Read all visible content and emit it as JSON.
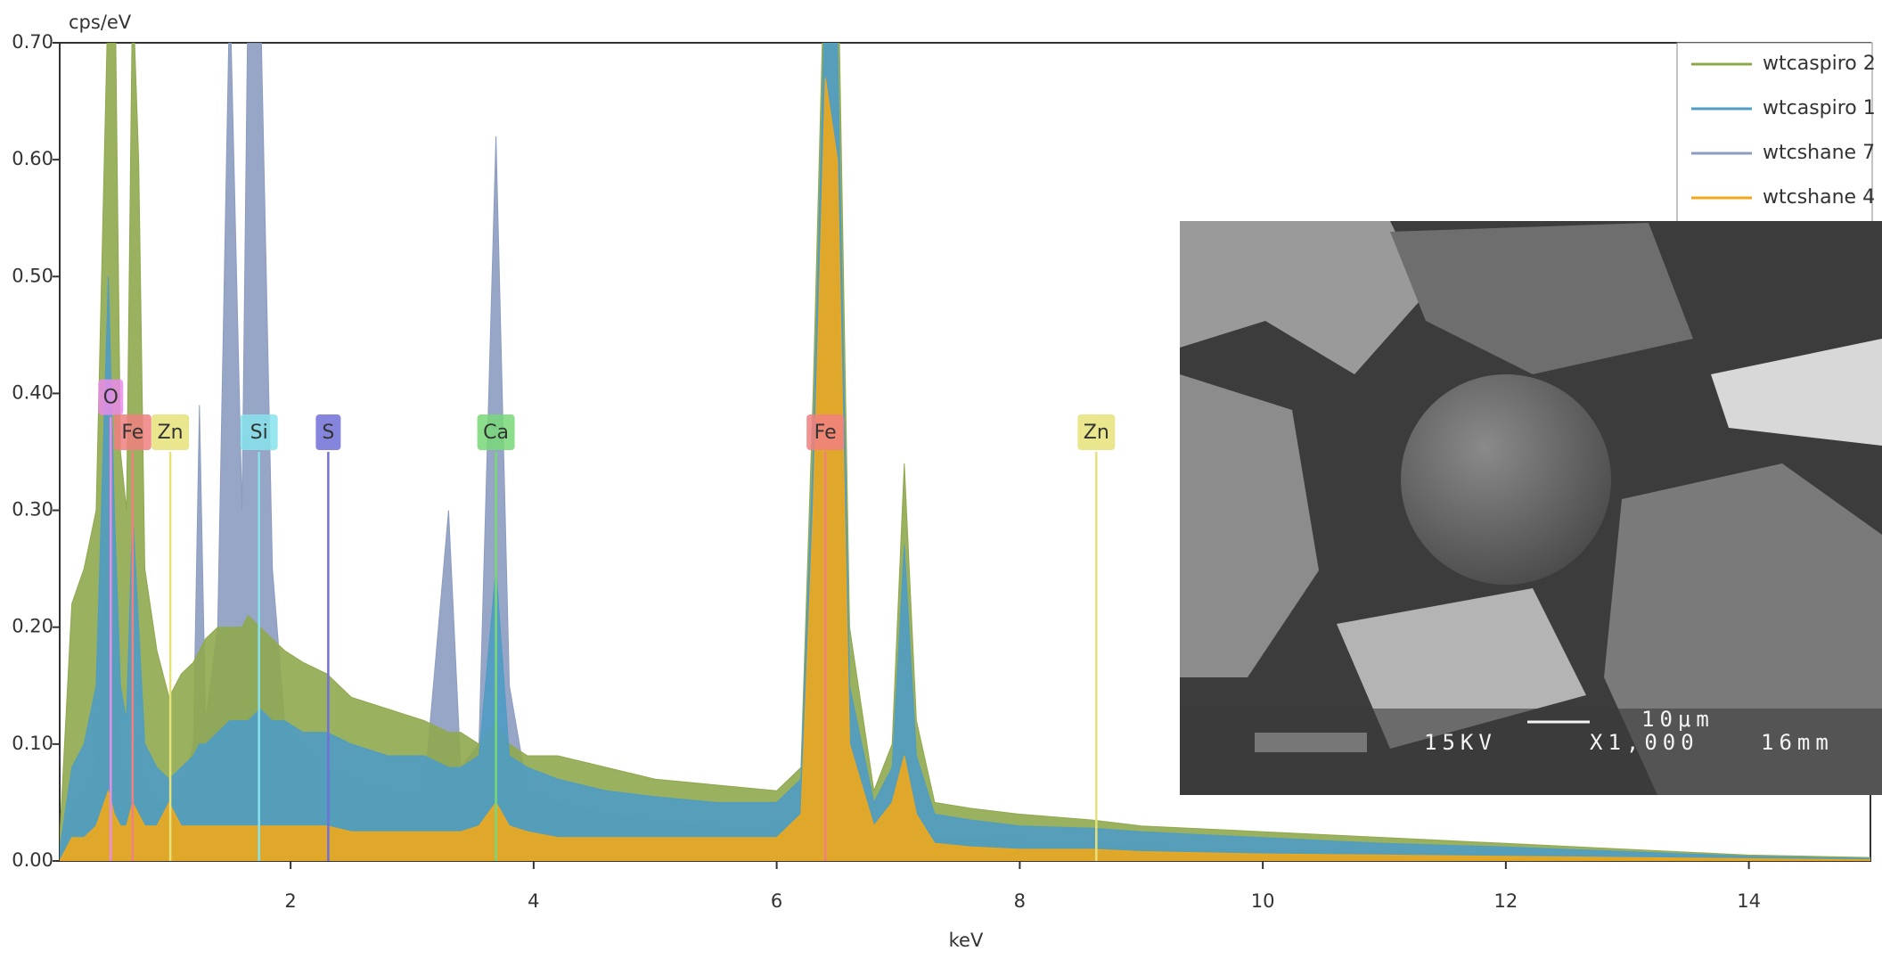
{
  "chart_data": {
    "type": "area",
    "y_label": "cps/eV",
    "x_label": "keV",
    "x": [
      0.1,
      0.2,
      0.3,
      0.4,
      0.5,
      0.55,
      0.6,
      0.65,
      0.7,
      0.75,
      0.8,
      0.9,
      1.0,
      1.1,
      1.2,
      1.25,
      1.3,
      1.4,
      1.5,
      1.6,
      1.65,
      1.75,
      1.85,
      1.95,
      2.1,
      2.3,
      2.5,
      2.8,
      3.1,
      3.3,
      3.4,
      3.55,
      3.69,
      3.8,
      3.95,
      4.2,
      4.6,
      5.0,
      5.5,
      6.0,
      6.2,
      6.3,
      6.4,
      6.5,
      6.6,
      6.8,
      6.95,
      7.05,
      7.15,
      7.3,
      7.6,
      8.0,
      8.6,
      9.0,
      10,
      11,
      12,
      13,
      14,
      15
    ],
    "series": [
      {
        "name": "wtcaspiro 2",
        "color": "#8fa84e",
        "values": [
          0.02,
          0.22,
          0.25,
          0.3,
          0.75,
          0.8,
          0.35,
          0.3,
          0.75,
          0.6,
          0.25,
          0.18,
          0.14,
          0.16,
          0.17,
          0.18,
          0.19,
          0.2,
          0.2,
          0.2,
          0.21,
          0.2,
          0.19,
          0.18,
          0.17,
          0.16,
          0.14,
          0.13,
          0.12,
          0.11,
          0.11,
          0.1,
          0.12,
          0.1,
          0.09,
          0.09,
          0.08,
          0.07,
          0.065,
          0.06,
          0.08,
          0.4,
          0.8,
          0.8,
          0.2,
          0.06,
          0.1,
          0.34,
          0.12,
          0.05,
          0.045,
          0.04,
          0.035,
          0.03,
          0.025,
          0.02,
          0.015,
          0.01,
          0.005,
          0.003
        ]
      },
      {
        "name": "wtcaspiro 1",
        "color": "#4f9cc4",
        "values": [
          0.01,
          0.08,
          0.1,
          0.15,
          0.5,
          0.3,
          0.15,
          0.12,
          0.3,
          0.2,
          0.1,
          0.08,
          0.07,
          0.08,
          0.09,
          0.1,
          0.1,
          0.11,
          0.12,
          0.12,
          0.12,
          0.13,
          0.12,
          0.12,
          0.11,
          0.11,
          0.1,
          0.09,
          0.09,
          0.08,
          0.08,
          0.09,
          0.25,
          0.09,
          0.08,
          0.07,
          0.06,
          0.055,
          0.05,
          0.05,
          0.07,
          0.35,
          0.75,
          0.7,
          0.15,
          0.05,
          0.08,
          0.27,
          0.09,
          0.04,
          0.035,
          0.03,
          0.028,
          0.025,
          0.02,
          0.015,
          0.012,
          0.008,
          0.004,
          0.002
        ]
      },
      {
        "name": "wtcshane 7",
        "color": "#8c9cc0",
        "values": [
          0.005,
          0.05,
          0.06,
          0.08,
          0.3,
          0.15,
          0.08,
          0.06,
          0.12,
          0.1,
          0.06,
          0.05,
          0.05,
          0.06,
          0.1,
          0.39,
          0.12,
          0.2,
          0.75,
          0.3,
          0.75,
          0.75,
          0.25,
          0.12,
          0.1,
          0.08,
          0.07,
          0.06,
          0.06,
          0.3,
          0.08,
          0.1,
          0.62,
          0.15,
          0.06,
          0.05,
          0.04,
          0.035,
          0.03,
          0.03,
          0.04,
          0.15,
          0.3,
          0.28,
          0.08,
          0.03,
          0.04,
          0.1,
          0.04,
          0.02,
          0.02,
          0.018,
          0.015,
          0.012,
          0.01,
          0.008,
          0.006,
          0.004,
          0.002,
          0.001
        ]
      },
      {
        "name": "wtcshane 4",
        "color": "#f0a81c",
        "values": [
          0,
          0.02,
          0.02,
          0.03,
          0.06,
          0.04,
          0.03,
          0.03,
          0.05,
          0.04,
          0.03,
          0.03,
          0.05,
          0.03,
          0.03,
          0.03,
          0.03,
          0.03,
          0.03,
          0.03,
          0.03,
          0.03,
          0.03,
          0.03,
          0.03,
          0.03,
          0.025,
          0.025,
          0.025,
          0.025,
          0.025,
          0.03,
          0.05,
          0.03,
          0.025,
          0.02,
          0.02,
          0.02,
          0.02,
          0.02,
          0.04,
          0.3,
          0.67,
          0.6,
          0.1,
          0.03,
          0.05,
          0.09,
          0.04,
          0.015,
          0.012,
          0.01,
          0.01,
          0.008,
          0.006,
          0.005,
          0.004,
          0.003,
          0.002,
          0.001
        ]
      }
    ],
    "markers": [
      {
        "label": "O",
        "x": 0.52,
        "y": 0.38,
        "color": "#e98ce9"
      },
      {
        "label": "Fe",
        "x": 0.7,
        "y": 0.35,
        "color": "#f08080"
      },
      {
        "label": "Zn",
        "x": 1.01,
        "y": 0.35,
        "color": "#e6e27a"
      },
      {
        "label": "Si",
        "x": 1.74,
        "y": 0.35,
        "color": "#86e2ec"
      },
      {
        "label": "S",
        "x": 2.31,
        "y": 0.35,
        "color": "#7070d8"
      },
      {
        "label": "Ca",
        "x": 3.69,
        "y": 0.35,
        "color": "#78d878"
      },
      {
        "label": "Fe",
        "x": 6.4,
        "y": 0.35,
        "color": "#f08080"
      },
      {
        "label": "Zn",
        "x": 8.63,
        "y": 0.35,
        "color": "#e6e27a"
      }
    ],
    "xlim": [
      0.1,
      15
    ],
    "ylim": [
      0,
      0.7
    ],
    "xticks": [
      2,
      4,
      6,
      8,
      10,
      12,
      14
    ],
    "yticks": [
      {
        "value": 0,
        "label": "0.00"
      },
      {
        "value": 0.1,
        "label": "0.10"
      },
      {
        "value": 0.2,
        "label": "0.20"
      },
      {
        "value": 0.3,
        "label": "0.30"
      },
      {
        "value": 0.4,
        "label": "0.40"
      },
      {
        "value": 0.5,
        "label": "0.50"
      },
      {
        "value": 0.6,
        "label": "0.60"
      },
      {
        "value": 0.7,
        "label": "0.70"
      }
    ],
    "legend": "upper right"
  },
  "inset": {
    "kv": "15KV",
    "magnification": "X1,000",
    "scale": "10μm",
    "distance": "16mm"
  }
}
